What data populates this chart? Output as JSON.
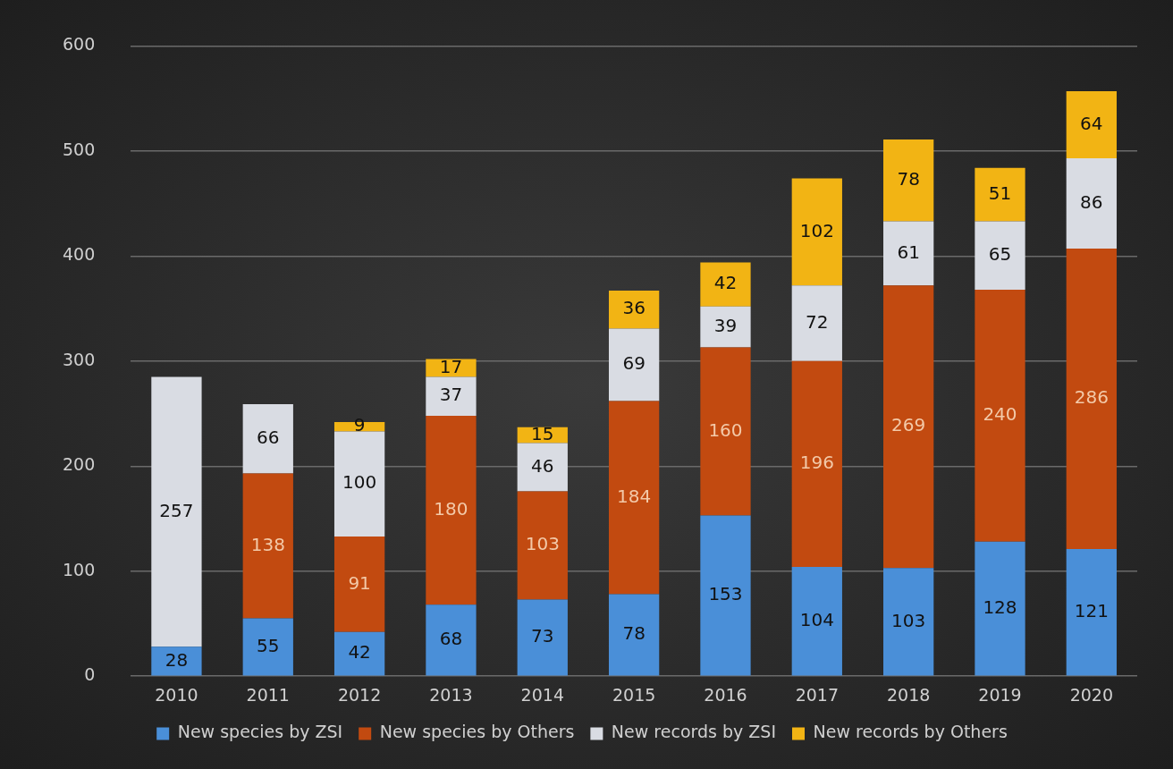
{
  "chart_data": {
    "type": "bar",
    "stacked": true,
    "categories": [
      "2010",
      "2011",
      "2012",
      "2013",
      "2014",
      "2015",
      "2016",
      "2017",
      "2018",
      "2019",
      "2020"
    ],
    "series": [
      {
        "name": "New species by ZSI",
        "color": "#4a8fd8",
        "values": [
          28,
          55,
          42,
          68,
          73,
          78,
          153,
          104,
          103,
          128,
          121
        ]
      },
      {
        "name": "New species by Others",
        "color": "#c24a10",
        "values": [
          null,
          138,
          91,
          180,
          103,
          184,
          160,
          196,
          269,
          240,
          286
        ]
      },
      {
        "name": "New records by ZSI",
        "color": "#d9dce3",
        "values": [
          257,
          66,
          100,
          37,
          46,
          69,
          39,
          72,
          61,
          65,
          86
        ]
      },
      {
        "name": "New records by Others",
        "color": "#f2b414",
        "values": [
          null,
          null,
          9,
          17,
          15,
          36,
          42,
          102,
          78,
          51,
          64
        ]
      }
    ],
    "ylim": [
      0,
      600
    ],
    "yticks": [
      0,
      100,
      200,
      300,
      400,
      500,
      600
    ],
    "grid": "y",
    "legend": "bottom",
    "data_labels": true
  }
}
